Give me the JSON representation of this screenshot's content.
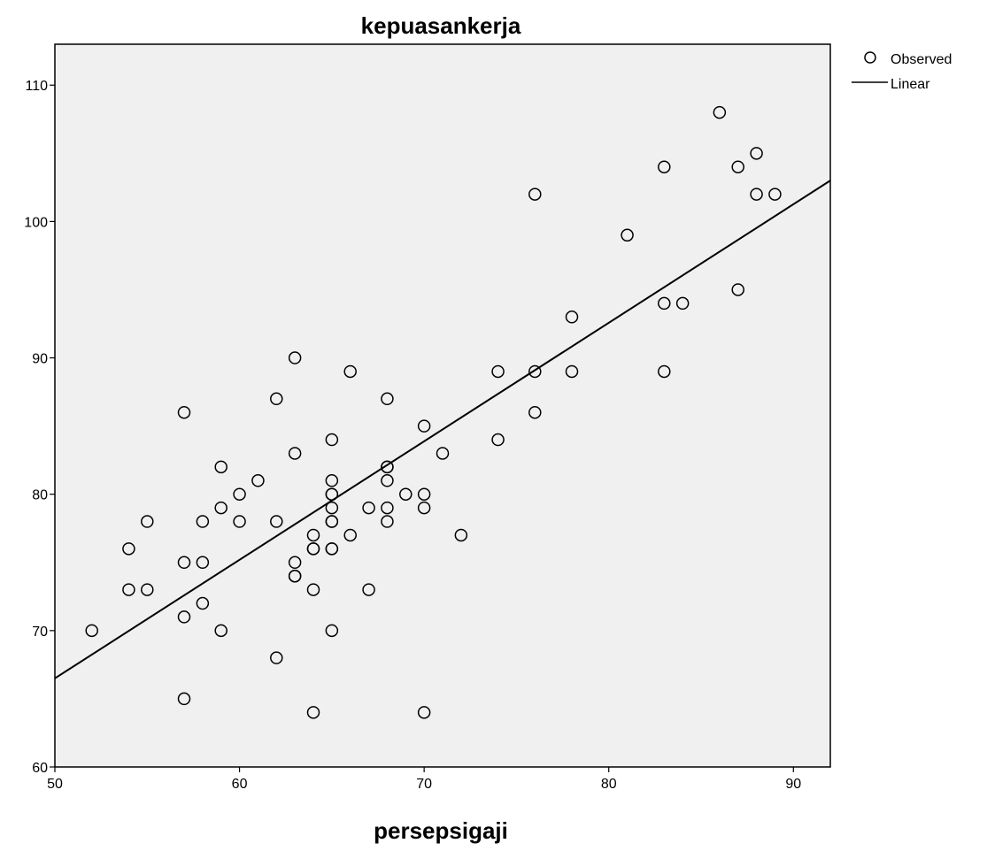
{
  "chart_data": {
    "type": "scatter",
    "title": "kepuasankerja",
    "xlabel": "persepsigaji",
    "ylabel": "",
    "xlim": [
      50,
      92
    ],
    "ylim": [
      60,
      113
    ],
    "x_ticks": [
      50,
      60,
      70,
      80,
      90
    ],
    "y_ticks": [
      60,
      70,
      80,
      90,
      100,
      110
    ],
    "grid": false,
    "legend_position": "top-right",
    "colors": {
      "plot_background": "#f0f0f0",
      "marker": "#000000",
      "line": "#000000"
    },
    "series": [
      {
        "name": "Observed",
        "kind": "scatter",
        "points": [
          [
            52,
            70
          ],
          [
            54,
            76
          ],
          [
            54,
            73
          ],
          [
            55,
            78
          ],
          [
            55,
            73
          ],
          [
            57,
            86
          ],
          [
            57,
            75
          ],
          [
            57,
            71
          ],
          [
            57,
            65
          ],
          [
            58,
            78
          ],
          [
            58,
            75
          ],
          [
            58,
            72
          ],
          [
            59,
            82
          ],
          [
            59,
            79
          ],
          [
            59,
            70
          ],
          [
            60,
            80
          ],
          [
            60,
            78
          ],
          [
            61,
            81
          ],
          [
            62,
            87
          ],
          [
            62,
            78
          ],
          [
            62,
            68
          ],
          [
            63,
            90
          ],
          [
            63,
            83
          ],
          [
            63,
            75
          ],
          [
            63,
            74
          ],
          [
            63,
            74
          ],
          [
            64,
            77
          ],
          [
            64,
            76
          ],
          [
            64,
            76
          ],
          [
            64,
            73
          ],
          [
            64,
            64
          ],
          [
            65,
            84
          ],
          [
            65,
            81
          ],
          [
            65,
            80
          ],
          [
            65,
            80
          ],
          [
            65,
            79
          ],
          [
            65,
            78
          ],
          [
            65,
            78
          ],
          [
            65,
            76
          ],
          [
            65,
            76
          ],
          [
            65,
            70
          ],
          [
            66,
            89
          ],
          [
            66,
            77
          ],
          [
            67,
            79
          ],
          [
            67,
            73
          ],
          [
            68,
            87
          ],
          [
            68,
            82
          ],
          [
            68,
            82
          ],
          [
            68,
            81
          ],
          [
            68,
            79
          ],
          [
            68,
            78
          ],
          [
            69,
            80
          ],
          [
            70,
            85
          ],
          [
            70,
            80
          ],
          [
            70,
            79
          ],
          [
            70,
            64
          ],
          [
            71,
            83
          ],
          [
            72,
            77
          ],
          [
            74,
            89
          ],
          [
            74,
            84
          ],
          [
            76,
            102
          ],
          [
            76,
            89
          ],
          [
            76,
            86
          ],
          [
            78,
            93
          ],
          [
            78,
            89
          ],
          [
            81,
            99
          ],
          [
            83,
            104
          ],
          [
            83,
            94
          ],
          [
            83,
            89
          ],
          [
            84,
            94
          ],
          [
            86,
            108
          ],
          [
            87,
            104
          ],
          [
            87,
            95
          ],
          [
            88,
            105
          ],
          [
            88,
            102
          ],
          [
            89,
            102
          ]
        ]
      },
      {
        "name": "Linear",
        "kind": "line",
        "points": [
          [
            50,
            66.5
          ],
          [
            92,
            103
          ]
        ]
      }
    ]
  }
}
